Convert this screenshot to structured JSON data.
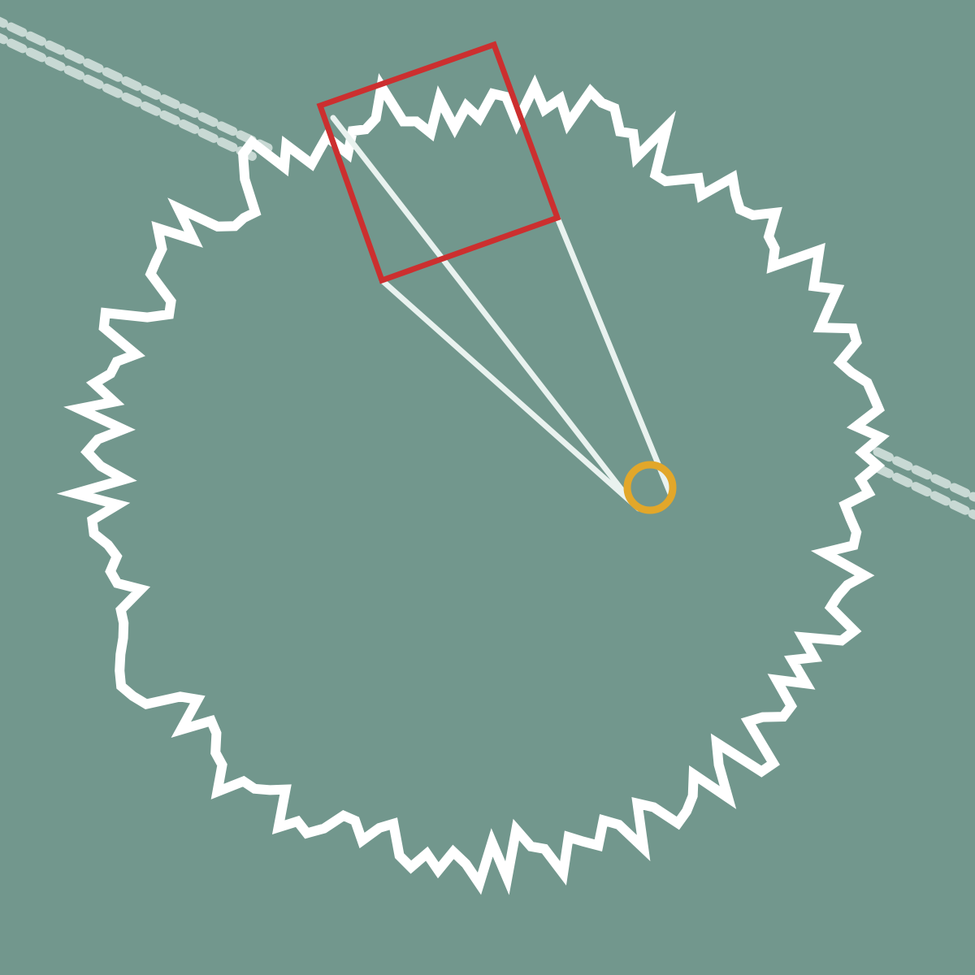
{
  "colors": {
    "background": "#72978d",
    "outline": "#ffffff",
    "guide_lines": "#e9f2ef",
    "path": "#c8d9d4",
    "highlight_box": "#cc2f2f",
    "target_ring": "#e2a72a"
  },
  "elements": {
    "outline": "jagged-circle-outline",
    "highlight": "square-highlight-box",
    "target": "ring-marker",
    "path": "dashed-double-path"
  }
}
